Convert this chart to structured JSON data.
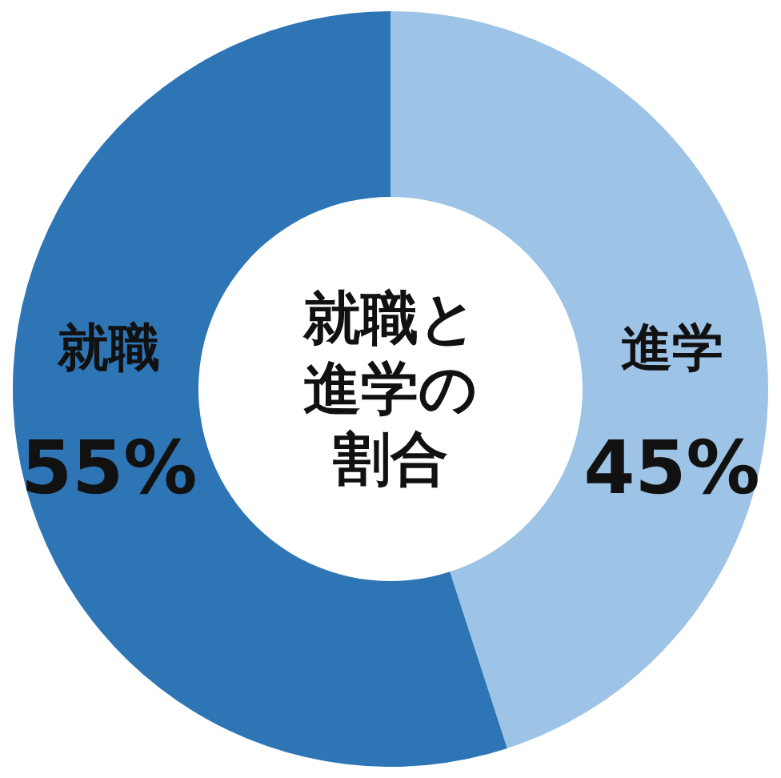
{
  "chart_data": {
    "type": "donut",
    "title": "就職と進学の割合",
    "categories": [
      "進学",
      "就職"
    ],
    "values": [
      45,
      55
    ],
    "colors": [
      "#9dc3e6",
      "#2e75b6"
    ],
    "value_labels": [
      "45%",
      "55%"
    ]
  }
}
